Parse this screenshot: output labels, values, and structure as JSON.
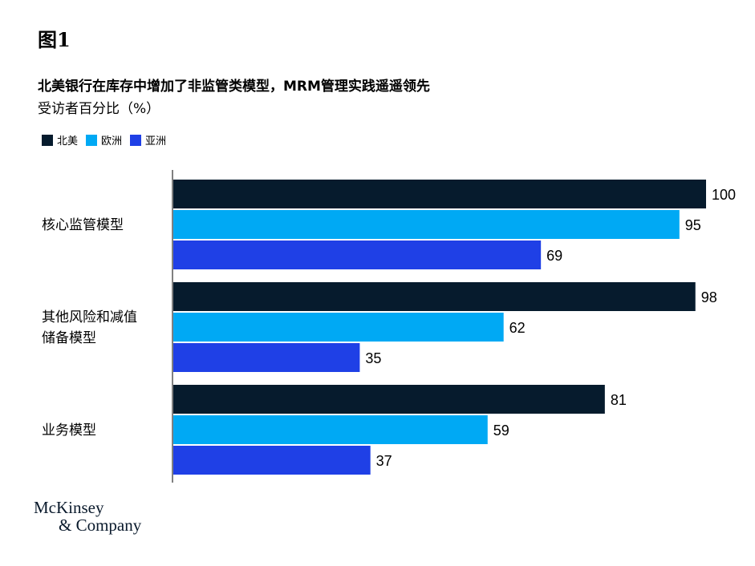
{
  "figure_label": "图1",
  "logo": {
    "line1": "McKinsey",
    "line2": "& Company"
  },
  "chart_data": {
    "type": "bar",
    "orientation": "horizontal",
    "title": "北美银行在库存中增加了非监管类模型，MRM管理实践遥遥领先",
    "subtitle": "受访者百分比（%）",
    "categories": [
      "核心监管模型",
      "其他风险和减值储备模型",
      "业务模型"
    ],
    "category_lines": [
      [
        "核心监管模型"
      ],
      [
        "其他风险和减值",
        "储备模型"
      ],
      [
        "业务模型"
      ]
    ],
    "series": [
      {
        "name": "北美",
        "color": "#061b2d",
        "values": [
          100,
          98,
          81
        ]
      },
      {
        "name": "欧洲",
        "color": "#00a9f4",
        "values": [
          95,
          62,
          59
        ]
      },
      {
        "name": "亚洲",
        "color": "#1f40e6",
        "values": [
          69,
          35,
          37
        ]
      }
    ],
    "xlim": [
      0,
      100
    ],
    "legend_position": "top-left",
    "grid": false
  }
}
